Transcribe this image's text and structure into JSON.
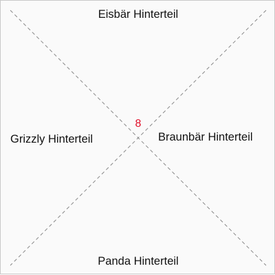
{
  "regions": {
    "top": "Eisbär Hinterteil",
    "right": "Braunbär Hinterteil",
    "bottom": "Panda Hinterteil",
    "left": "Grizzly Hinterteil"
  },
  "center": {
    "value": "8"
  },
  "colors": {
    "center_value": "#e0102a",
    "diagonal": "#888888",
    "border": "#c8c8c8",
    "background": "#fafafa"
  }
}
